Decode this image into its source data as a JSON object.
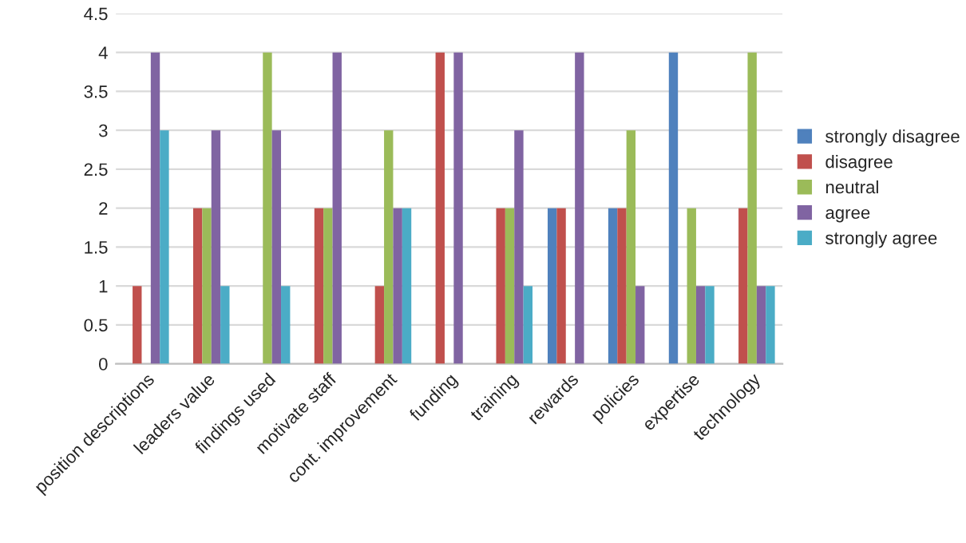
{
  "chart_data": {
    "type": "bar",
    "categories": [
      "position descriptions",
      "leaders value",
      "findings used",
      "motivate staff",
      "cont. improvement",
      "funding",
      "training",
      "rewards",
      "policies",
      "expertise",
      "technology"
    ],
    "series": [
      {
        "name": "strongly disagree",
        "color": "#4f81bd",
        "values": [
          0,
          0,
          0,
          0,
          0,
          0,
          0,
          2,
          2,
          4,
          0
        ]
      },
      {
        "name": "disagree",
        "color": "#c0504d",
        "values": [
          1,
          2,
          0,
          2,
          1,
          4,
          2,
          2,
          2,
          0,
          2
        ]
      },
      {
        "name": "neutral",
        "color": "#9bbb59",
        "values": [
          0,
          2,
          4,
          2,
          3,
          0,
          2,
          0,
          3,
          2,
          4
        ]
      },
      {
        "name": "agree",
        "color": "#8064a2",
        "values": [
          4,
          3,
          3,
          4,
          2,
          4,
          3,
          4,
          1,
          1,
          1
        ]
      },
      {
        "name": "strongly agree",
        "color": "#4bacc6",
        "values": [
          3,
          1,
          1,
          0,
          2,
          0,
          1,
          0,
          0,
          1,
          1
        ]
      }
    ],
    "ylim": [
      0,
      4.5
    ],
    "yticks": [
      0,
      0.5,
      1,
      1.5,
      2,
      2.5,
      3,
      3.5,
      4,
      4.5
    ],
    "grid": "y",
    "legend": "right"
  }
}
